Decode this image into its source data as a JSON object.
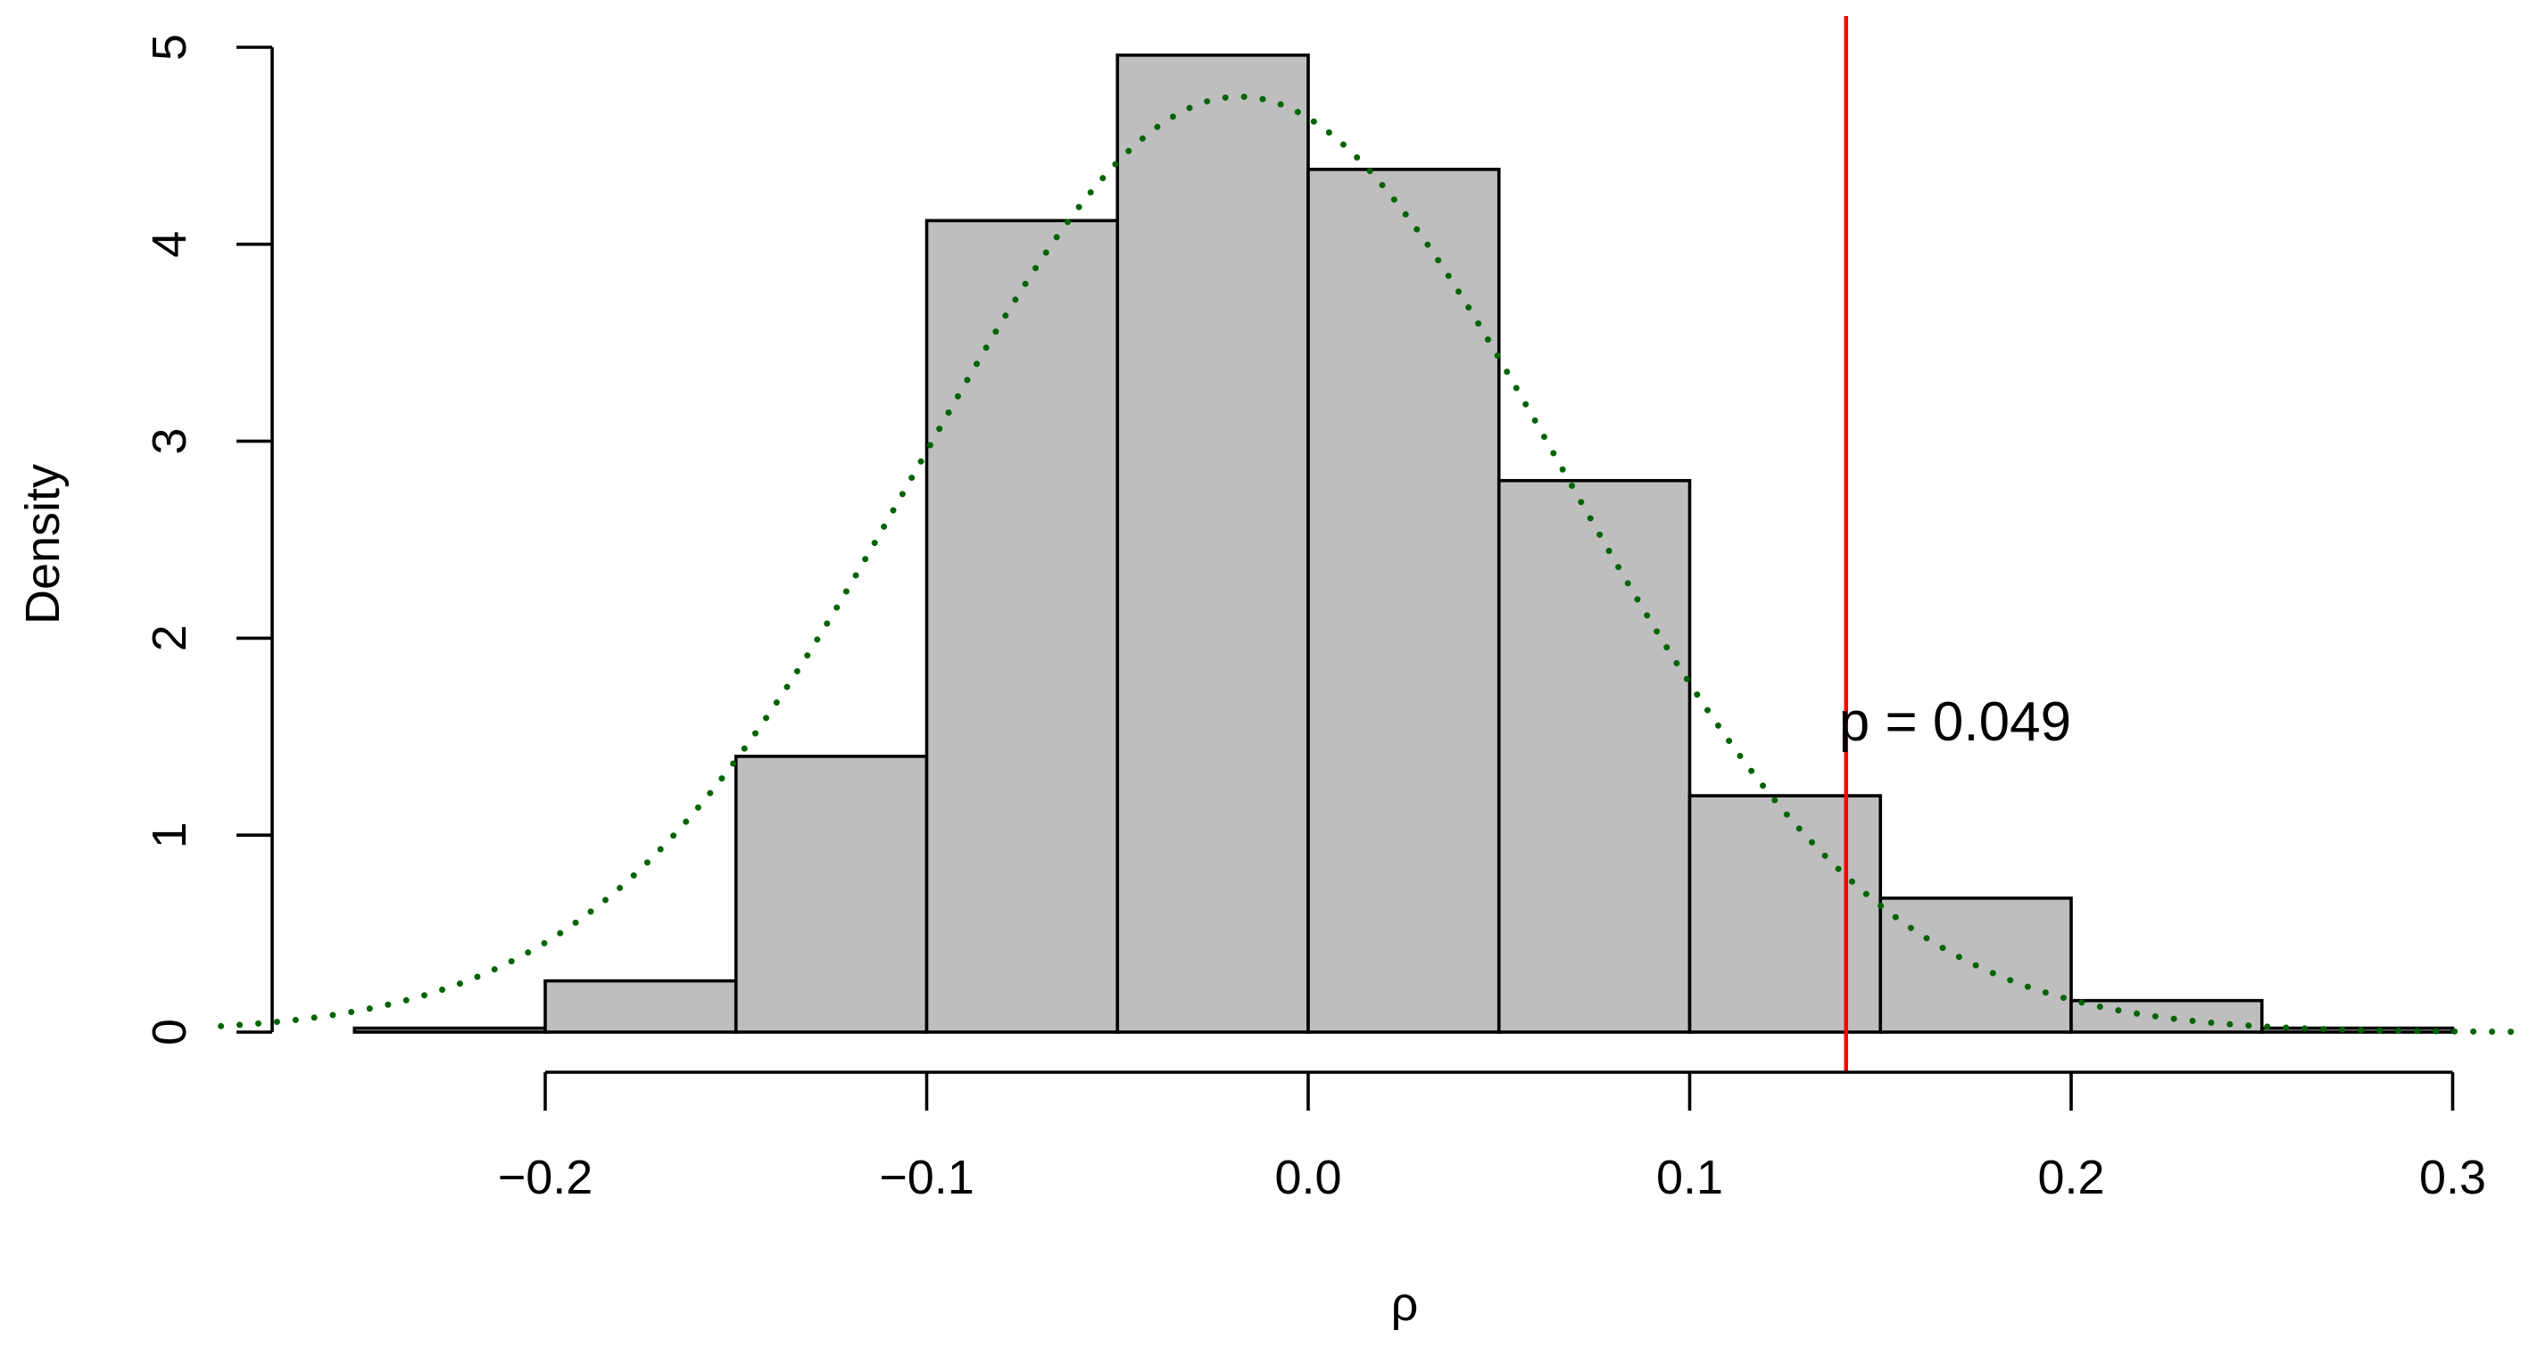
{
  "chart_data": {
    "type": "bar",
    "subtype": "histogram",
    "xlabel": "ρ",
    "ylabel": "Density",
    "xlim": [
      -0.27,
      0.3
    ],
    "ylim": [
      0,
      5
    ],
    "x_axis_ticks": [
      -0.2,
      -0.1,
      0.0,
      0.1,
      0.2,
      0.3
    ],
    "x_axis_tick_labels": [
      "−0.2",
      "−0.1",
      "0.0",
      "0.1",
      "0.2",
      "0.3"
    ],
    "y_axis_ticks": [
      0,
      1,
      2,
      3,
      4,
      5
    ],
    "y_axis_tick_labels": [
      "0",
      "1",
      "2",
      "3",
      "4",
      "5"
    ],
    "bins": [
      {
        "x0": -0.25,
        "x1": -0.2,
        "density": 0.02
      },
      {
        "x0": -0.2,
        "x1": -0.15,
        "density": 0.26
      },
      {
        "x0": -0.15,
        "x1": -0.1,
        "density": 1.4
      },
      {
        "x0": -0.1,
        "x1": -0.05,
        "density": 4.12
      },
      {
        "x0": -0.05,
        "x1": 0.0,
        "density": 4.96
      },
      {
        "x0": 0.0,
        "x1": 0.05,
        "density": 4.38
      },
      {
        "x0": 0.05,
        "x1": 0.1,
        "density": 2.8
      },
      {
        "x0": 0.1,
        "x1": 0.15,
        "density": 1.2
      },
      {
        "x0": 0.15,
        "x1": 0.2,
        "density": 0.68
      },
      {
        "x0": 0.2,
        "x1": 0.25,
        "density": 0.16
      },
      {
        "x0": 0.25,
        "x1": 0.3,
        "density": 0.02
      }
    ],
    "density_curve": {
      "kind": "normal",
      "mean": -0.018,
      "sd": 0.084,
      "style": "dotted",
      "color": "#006400"
    },
    "reference_line": {
      "x": 0.141,
      "color": "#ff0000"
    },
    "annotations": [
      {
        "text": "p = 0.049",
        "x": 0.141,
        "y": 1.58
      }
    ],
    "colors": {
      "bar_fill": "#bebebe",
      "bar_stroke": "#000000",
      "axis": "#000000"
    },
    "grid": false,
    "legend": "none"
  }
}
